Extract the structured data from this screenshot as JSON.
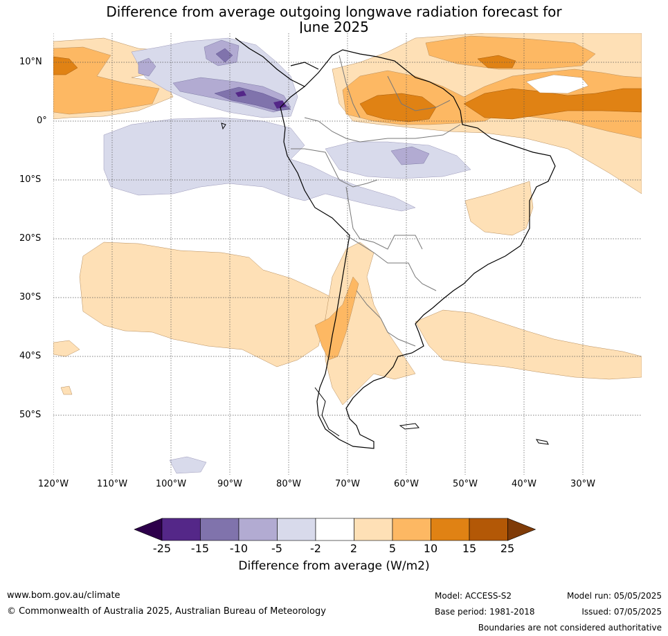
{
  "title": {
    "line1": "Difference from average outgoing longwave radiation forecast for",
    "line2": "June 2025"
  },
  "map": {
    "lat_labels": [
      "10°N",
      "0°",
      "10°S",
      "20°S",
      "30°S",
      "40°S",
      "50°S"
    ],
    "lon_labels": [
      "120°W",
      "110°W",
      "100°W",
      "90°W",
      "80°W",
      "70°W",
      "60°W",
      "50°W",
      "40°W",
      "30°W"
    ]
  },
  "colorbar": {
    "ticks": [
      "-25",
      "-15",
      "-10",
      "-5",
      "-2",
      "2",
      "5",
      "10",
      "15",
      "25"
    ],
    "colors": [
      "#2d004b",
      "#542788",
      "#8073ac",
      "#b2abd2",
      "#d8daeb",
      "#ffffff",
      "#fee0b6",
      "#fdb863",
      "#e08214",
      "#b35806",
      "#7f3b08"
    ],
    "title": "Difference from average (W/m2)"
  },
  "footer": {
    "website": "www.bom.gov.au/climate",
    "copyright": "© Commonwealth of Australia 2025, Australian Bureau of Meteorology",
    "model": "Model: ACCESS-S2",
    "base_period": "Base period: 1981-2018",
    "model_run": "Model run: 05/05/2025",
    "issued": "Issued: 07/05/2025",
    "boundaries": "Boundaries are not considered authoritative"
  }
}
